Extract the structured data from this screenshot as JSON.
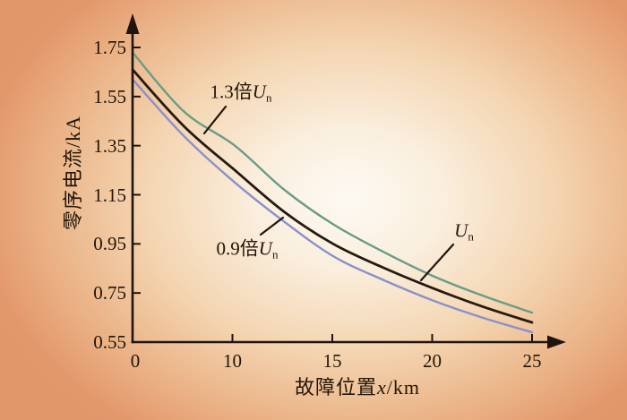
{
  "page": {
    "background_center": "#fdfaf3",
    "background_edge": "#e2976b"
  },
  "chart_data": {
    "type": "line",
    "title": "",
    "xlabel": "故障位置x/km",
    "xlabel_parts": {
      "prefix": "故障位置",
      "symbol": "x",
      "suffix": "/km"
    },
    "ylabel": "零序电流/kA",
    "x_tick_labels": [
      "0",
      "10",
      "15",
      "20",
      "25"
    ],
    "y_tick_labels": [
      "1.75",
      "1.55",
      "1.35",
      "1.15",
      "0.95",
      "0.75",
      "0.55"
    ],
    "ylim": [
      0.55,
      1.75
    ],
    "grid": "off",
    "legend_position": "inline-callouts",
    "axis_color": "#1f150c",
    "text_color": "#231507",
    "series": [
      {
        "name": "1.3倍Un",
        "label": {
          "prefix": "1.3倍",
          "symbol": "U",
          "subscript": "n"
        },
        "color": "#6a9c86",
        "x_norm": [
          0,
          0.128,
          0.256,
          0.38,
          0.502,
          0.625,
          0.751,
          0.875,
          1.0
        ],
        "values_kA": [
          1.73,
          1.49,
          1.35,
          1.17,
          1.03,
          0.92,
          0.82,
          0.74,
          0.67
        ]
      },
      {
        "name": "Un",
        "label": {
          "prefix": "",
          "symbol": "U",
          "subscript": "n"
        },
        "color": "#261a10",
        "x_norm": [
          0,
          0.128,
          0.256,
          0.38,
          0.502,
          0.625,
          0.751,
          0.875,
          1.0
        ],
        "values_kA": [
          1.66,
          1.43,
          1.25,
          1.08,
          0.95,
          0.855,
          0.77,
          0.695,
          0.63
        ]
      },
      {
        "name": "0.9倍Un",
        "label": {
          "prefix": "0.9倍",
          "symbol": "U",
          "subscript": "n"
        },
        "color": "#8a90cb",
        "x_norm": [
          0,
          0.128,
          0.256,
          0.38,
          0.502,
          0.625,
          0.751,
          0.875,
          1.0
        ],
        "values_kA": [
          1.62,
          1.39,
          1.2,
          1.04,
          0.9,
          0.805,
          0.72,
          0.65,
          0.59
        ]
      }
    ],
    "annotations": [
      {
        "target_series": 0,
        "label_text": "1.3倍Un"
      },
      {
        "target_series": 1,
        "label_text": "Un"
      },
      {
        "target_series": 2,
        "label_text": "0.9倍Un"
      }
    ]
  }
}
